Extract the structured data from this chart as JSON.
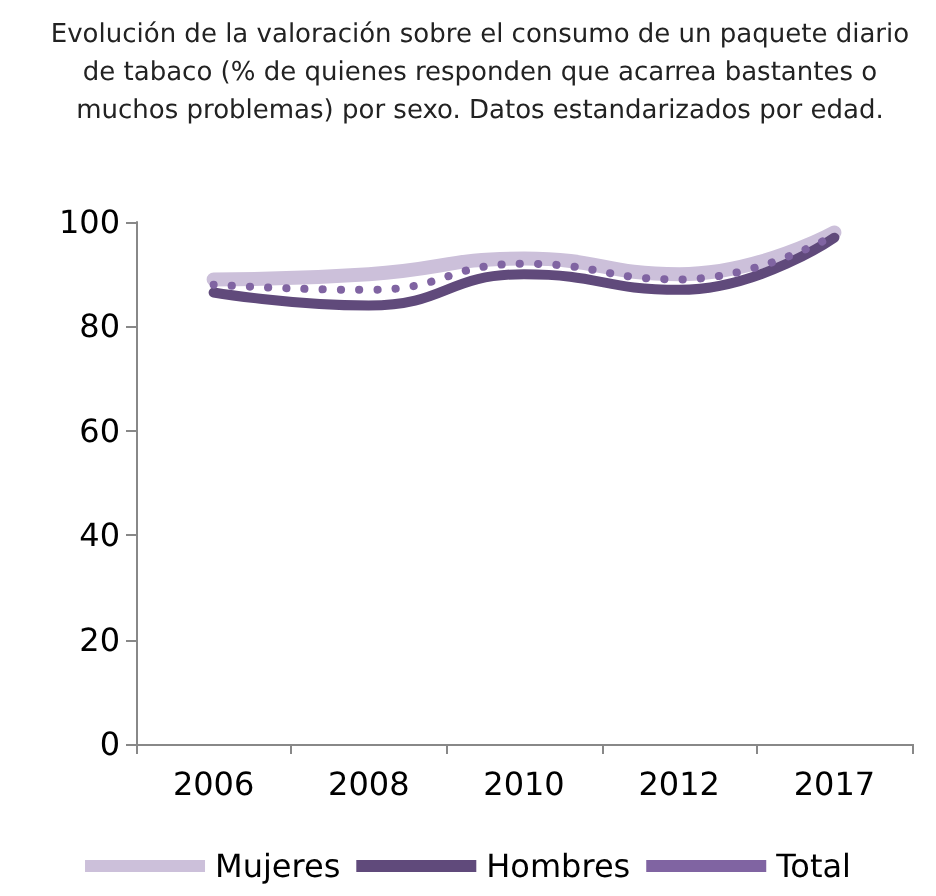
{
  "chart_data": {
    "type": "line",
    "title": "Evolución de la valoración sobre el consumo de un paquete diario de tabaco (% de quienes responden que acarrea bastantes o muchos problemas) por sexo. Datos estandarizados por edad.",
    "categories": [
      "2006",
      "2008",
      "2010",
      "2012",
      "2017"
    ],
    "series": [
      {
        "name": "Mujeres",
        "color": "#ccc0da",
        "values": [
          89,
          90,
          93,
          90,
          98
        ],
        "line_style": "solid"
      },
      {
        "name": "Hombres",
        "color": "#604a7b",
        "values": [
          86.5,
          84,
          90,
          87,
          97
        ],
        "line_style": "solid"
      },
      {
        "name": "Total",
        "color": "#8064a2",
        "values": [
          88,
          87,
          92,
          89,
          97.5
        ],
        "line_style": "dotted"
      }
    ],
    "ylim": [
      0,
      100
    ],
    "yticks": [
      0,
      20,
      40,
      60,
      80,
      100
    ],
    "grid": false,
    "legend": "bottom",
    "marker": "none"
  }
}
